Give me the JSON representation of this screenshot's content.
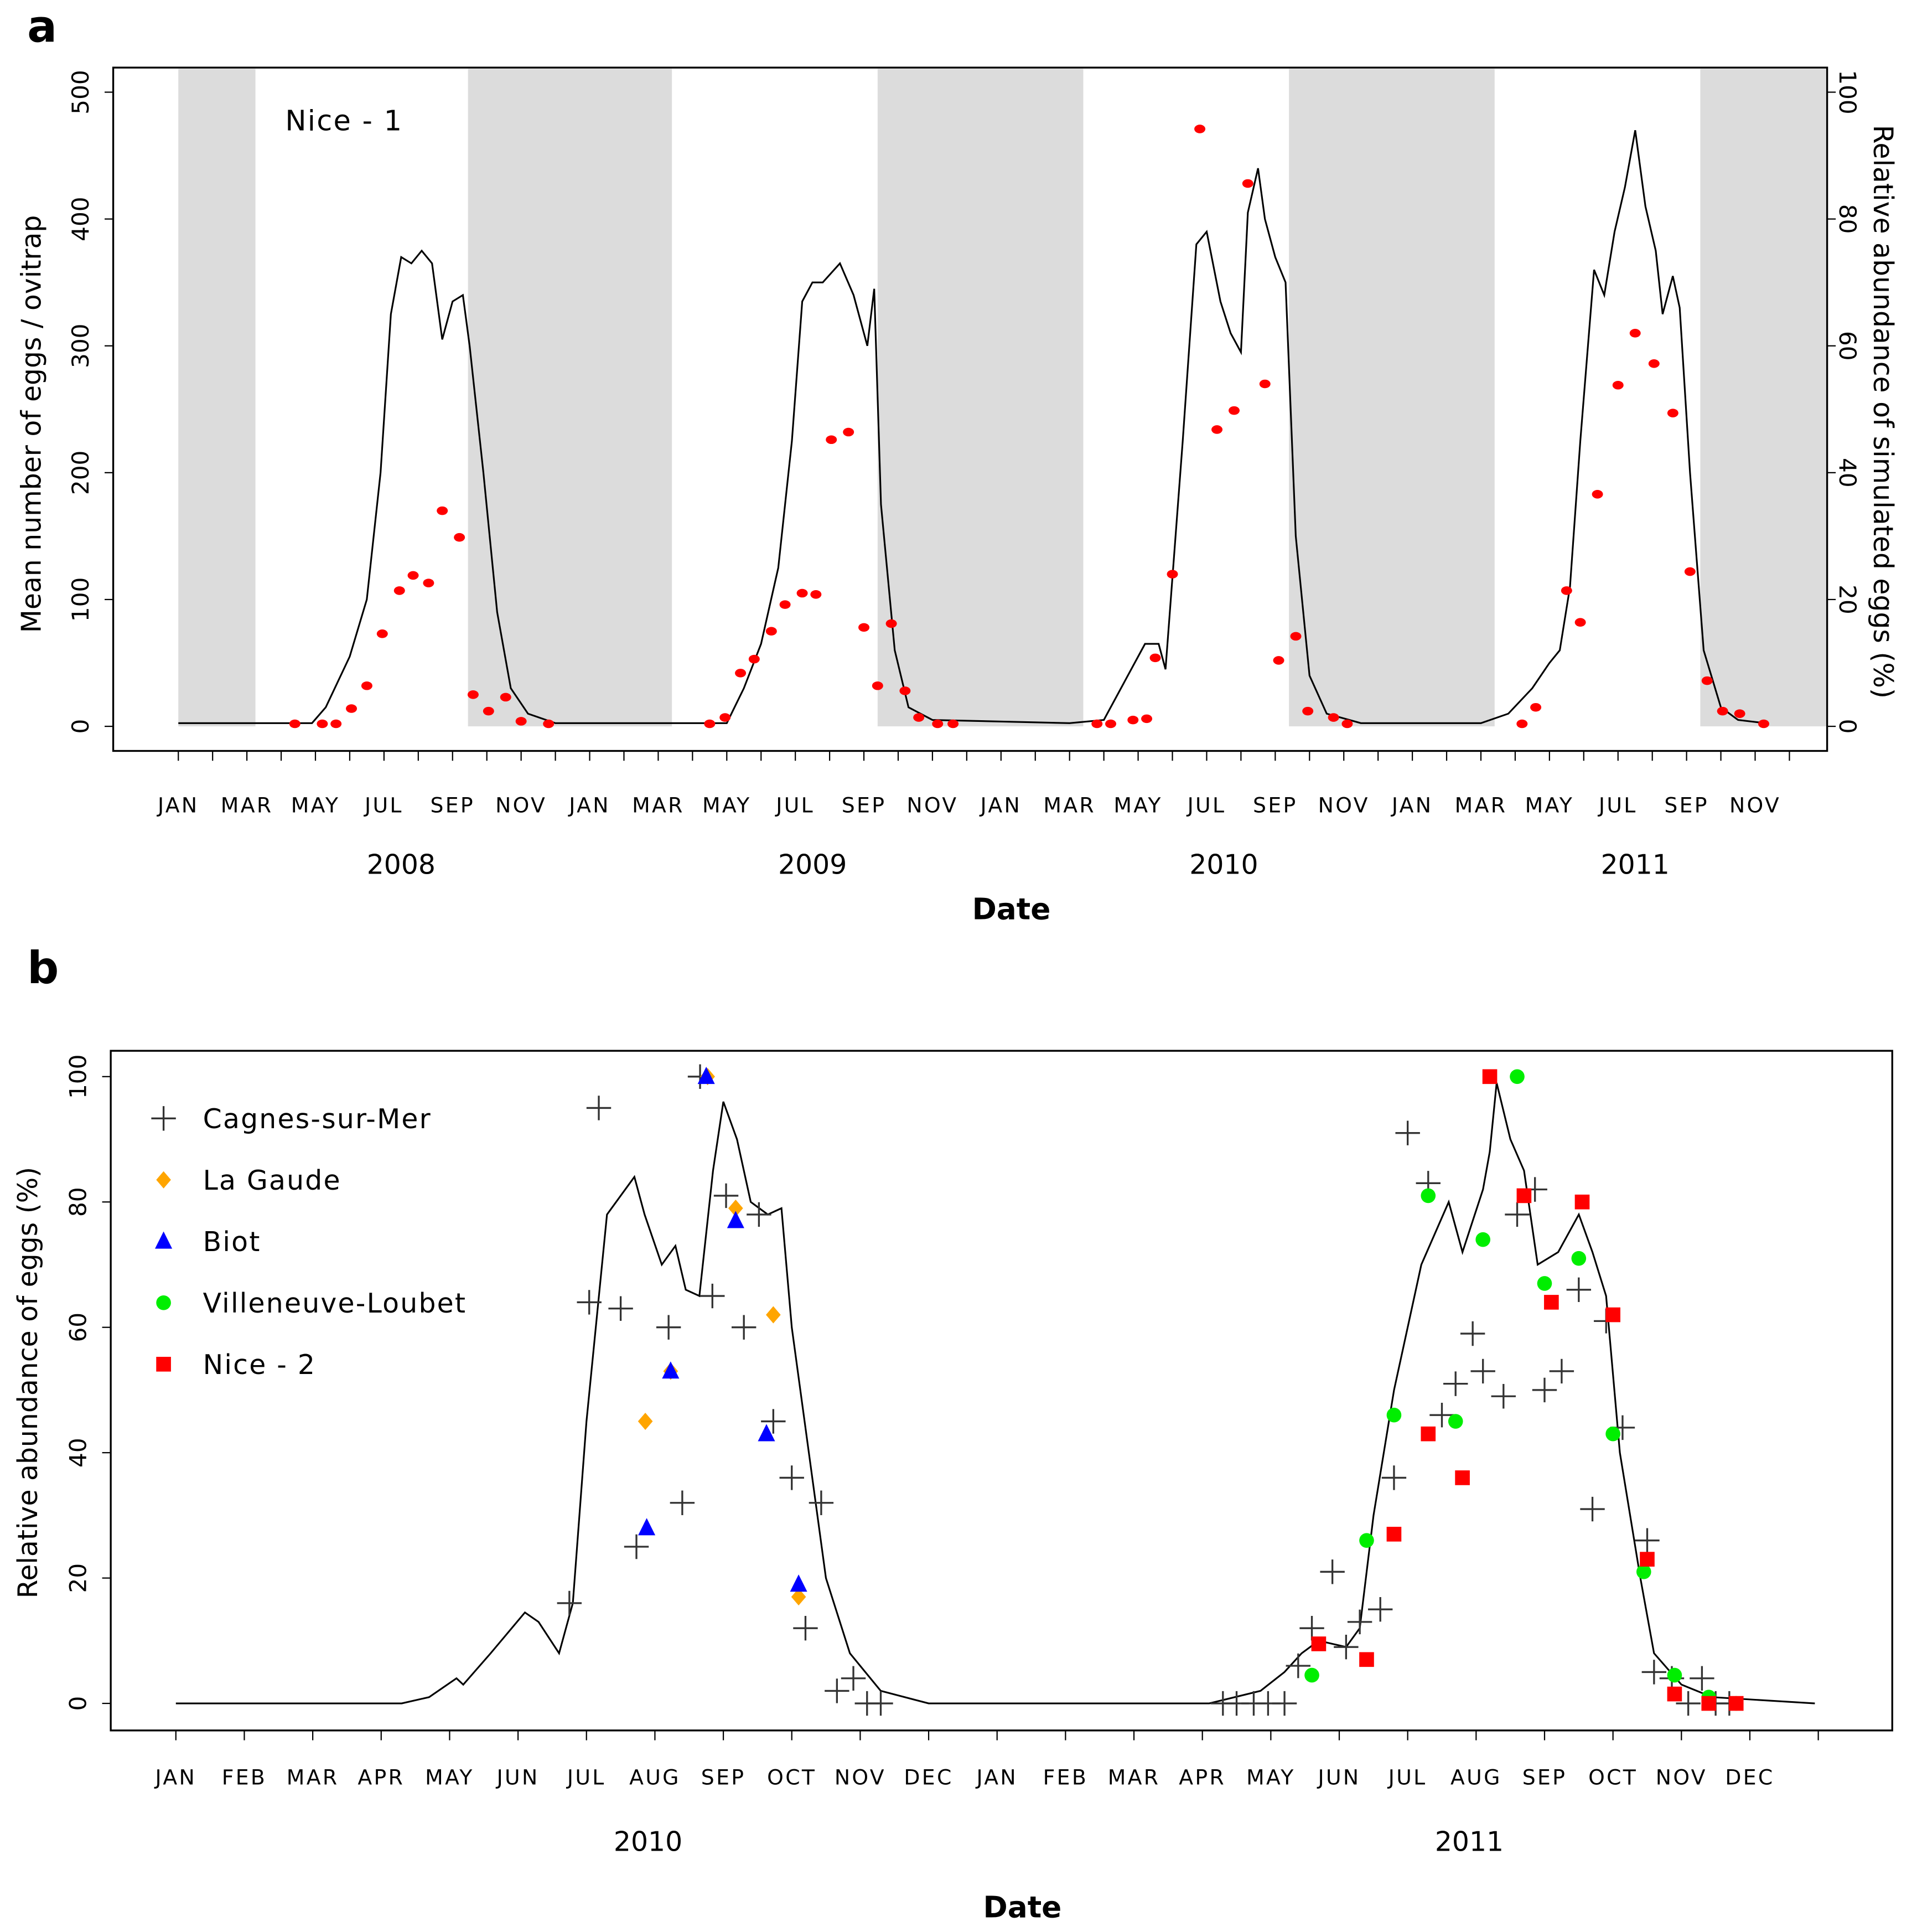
{
  "panel_labels": [
    "a",
    "b"
  ],
  "chart_data": [
    {
      "type": "line+scatter",
      "panel": "a",
      "site_label": "Nice - 1",
      "xlabel": "Date",
      "ylabel": "Mean number of eggs / ovitrap",
      "ylabel_right": "Relative abundance of simulated eggs (%)",
      "ylim": [
        0,
        500
      ],
      "ylim_right": [
        0,
        100
      ],
      "yticks": [
        0,
        100,
        200,
        300,
        400,
        500
      ],
      "yticks_right": [
        0,
        20,
        40,
        60,
        80,
        100
      ],
      "x_unit": "months since Jan 2008",
      "month_labels": [
        "JAN",
        "MAR",
        "MAY",
        "JUL",
        "SEP",
        "NOV",
        "JAN",
        "MAR",
        "MAY",
        "JUL",
        "SEP",
        "NOV",
        "JAN",
        "MAR",
        "MAY",
        "JUL",
        "SEP",
        "NOV",
        "JAN",
        "MAR",
        "MAY",
        "JUL",
        "SEP",
        "NOV"
      ],
      "years": [
        "2008",
        "2009",
        "2010",
        "2011"
      ],
      "shaded_periods_months": [
        [
          0,
          2.25
        ],
        [
          8.45,
          14.4
        ],
        [
          20.4,
          26.4
        ],
        [
          32.4,
          38.4
        ],
        [
          44.4,
          48.3
        ]
      ],
      "observed_eggs": [
        [
          3.4,
          2
        ],
        [
          4.2,
          2
        ],
        [
          4.6,
          2
        ],
        [
          5.05,
          14
        ],
        [
          5.5,
          32
        ],
        [
          5.95,
          73
        ],
        [
          6.45,
          107
        ],
        [
          6.85,
          119
        ],
        [
          7.3,
          113
        ],
        [
          7.7,
          170
        ],
        [
          8.2,
          149
        ],
        [
          8.6,
          25
        ],
        [
          9.05,
          12
        ],
        [
          9.55,
          23
        ],
        [
          10.0,
          4
        ],
        [
          10.8,
          2
        ],
        [
          15.5,
          2
        ],
        [
          15.95,
          7
        ],
        [
          16.4,
          42
        ],
        [
          16.8,
          53
        ],
        [
          17.3,
          75
        ],
        [
          17.7,
          96
        ],
        [
          18.2,
          105
        ],
        [
          18.6,
          104
        ],
        [
          19.05,
          226
        ],
        [
          19.55,
          232
        ],
        [
          20.0,
          78
        ],
        [
          20.4,
          32
        ],
        [
          20.8,
          81
        ],
        [
          21.2,
          28
        ],
        [
          21.6,
          7
        ],
        [
          22.15,
          2
        ],
        [
          22.6,
          2
        ],
        [
          26.8,
          2
        ],
        [
          27.2,
          2
        ],
        [
          27.85,
          5
        ],
        [
          28.25,
          6
        ],
        [
          28.5,
          54
        ],
        [
          29.0,
          120
        ],
        [
          29.8,
          471
        ],
        [
          30.3,
          234
        ],
        [
          30.8,
          249
        ],
        [
          31.2,
          428
        ],
        [
          31.7,
          270
        ],
        [
          32.1,
          52
        ],
        [
          32.6,
          71
        ],
        [
          32.95,
          12
        ],
        [
          33.7,
          7
        ],
        [
          34.1,
          2
        ],
        [
          39.2,
          2
        ],
        [
          39.6,
          15
        ],
        [
          40.5,
          107
        ],
        [
          40.9,
          82
        ],
        [
          41.4,
          183
        ],
        [
          42.0,
          269
        ],
        [
          42.5,
          310
        ],
        [
          43.05,
          286
        ],
        [
          43.6,
          247
        ],
        [
          44.1,
          122
        ],
        [
          44.6,
          36
        ],
        [
          45.05,
          12
        ],
        [
          45.55,
          10
        ],
        [
          46.25,
          2
        ]
      ],
      "simulated_pct": [
        [
          0,
          0.5
        ],
        [
          3.9,
          0.5
        ],
        [
          4.3,
          3
        ],
        [
          5,
          11
        ],
        [
          5.5,
          20
        ],
        [
          5.9,
          40
        ],
        [
          6.2,
          65
        ],
        [
          6.5,
          74
        ],
        [
          6.8,
          73
        ],
        [
          7.1,
          75
        ],
        [
          7.4,
          73
        ],
        [
          7.7,
          61
        ],
        [
          8.0,
          67
        ],
        [
          8.3,
          68
        ],
        [
          8.5,
          60
        ],
        [
          8.9,
          40
        ],
        [
          9.3,
          18
        ],
        [
          9.7,
          6
        ],
        [
          10.2,
          2
        ],
        [
          11,
          0.5
        ],
        [
          16,
          0.5
        ],
        [
          16.5,
          6
        ],
        [
          17,
          13
        ],
        [
          17.5,
          25
        ],
        [
          17.9,
          45
        ],
        [
          18.2,
          67
        ],
        [
          18.5,
          70
        ],
        [
          18.8,
          70
        ],
        [
          19.3,
          73
        ],
        [
          19.7,
          68
        ],
        [
          20.1,
          60
        ],
        [
          20.3,
          69
        ],
        [
          20.5,
          35
        ],
        [
          20.9,
          12
        ],
        [
          21.3,
          3
        ],
        [
          22,
          1
        ],
        [
          26,
          0.5
        ],
        [
          27,
          1
        ],
        [
          27.6,
          7
        ],
        [
          28.2,
          13
        ],
        [
          28.6,
          13
        ],
        [
          28.8,
          9
        ],
        [
          29.3,
          45
        ],
        [
          29.7,
          76
        ],
        [
          30.0,
          78
        ],
        [
          30.4,
          67
        ],
        [
          30.7,
          62
        ],
        [
          31.0,
          59
        ],
        [
          31.2,
          81
        ],
        [
          31.5,
          88
        ],
        [
          31.7,
          80
        ],
        [
          32.0,
          74
        ],
        [
          32.3,
          70
        ],
        [
          32.6,
          30
        ],
        [
          33.0,
          8
        ],
        [
          33.5,
          2
        ],
        [
          34.5,
          0.5
        ],
        [
          38,
          0.5
        ],
        [
          38.8,
          2
        ],
        [
          39.5,
          6
        ],
        [
          40,
          10
        ],
        [
          40.3,
          12
        ],
        [
          40.6,
          22
        ],
        [
          40.9,
          45
        ],
        [
          41.3,
          72
        ],
        [
          41.6,
          68
        ],
        [
          41.9,
          78
        ],
        [
          42.2,
          85
        ],
        [
          42.5,
          94
        ],
        [
          42.8,
          82
        ],
        [
          43.1,
          75
        ],
        [
          43.3,
          65
        ],
        [
          43.6,
          71
        ],
        [
          43.8,
          66
        ],
        [
          44.1,
          40
        ],
        [
          44.5,
          12
        ],
        [
          45,
          3
        ],
        [
          45.5,
          1
        ],
        [
          46.3,
          0.5
        ]
      ],
      "colors": {
        "observed": "#ff0000",
        "simulated": "#000000",
        "shade": "#dcdcdc"
      }
    },
    {
      "type": "line+scatter",
      "panel": "b",
      "xlabel": "Date",
      "ylabel": "Relative abundance of eggs (%)",
      "ylim": [
        0,
        100
      ],
      "yticks": [
        0,
        20,
        40,
        60,
        80,
        100
      ],
      "x_unit": "months since Jan 2010",
      "month_labels": [
        "JAN",
        "FEB",
        "MAR",
        "APR",
        "MAY",
        "JUN",
        "JUL",
        "AUG",
        "SEP",
        "OCT",
        "NOV",
        "DEC",
        "JAN",
        "FEB",
        "MAR",
        "APR",
        "MAY",
        "JUN",
        "JUL",
        "AUG",
        "SEP",
        "OCT",
        "NOV",
        "DEC"
      ],
      "years": [
        "2010",
        "2011"
      ],
      "legend_position": "top-left",
      "series": [
        {
          "name": "Cagnes-sur-Mer",
          "marker": "plus",
          "color": "#333333",
          "points": [
            [
              5.75,
              16
            ],
            [
              6.04,
              64
            ],
            [
              6.18,
              95
            ],
            [
              6.5,
              63
            ],
            [
              6.73,
              25
            ],
            [
              7.2,
              60
            ],
            [
              7.4,
              32
            ],
            [
              7.66,
              100
            ],
            [
              7.84,
              65
            ],
            [
              8.04,
              81
            ],
            [
              8.3,
              60
            ],
            [
              8.52,
              78
            ],
            [
              8.73,
              45
            ],
            [
              9.0,
              36
            ],
            [
              9.2,
              12
            ],
            [
              9.43,
              32
            ],
            [
              9.66,
              2
            ],
            [
              9.9,
              4
            ],
            [
              10.1,
              0
            ],
            [
              10.3,
              0
            ],
            [
              15.3,
              0
            ],
            [
              15.5,
              0
            ],
            [
              15.75,
              0
            ],
            [
              15.96,
              0
            ],
            [
              16.2,
              0
            ],
            [
              16.4,
              6
            ],
            [
              16.6,
              12
            ],
            [
              16.9,
              21
            ],
            [
              17.1,
              9
            ],
            [
              17.3,
              13
            ],
            [
              17.6,
              15
            ],
            [
              17.8,
              36
            ],
            [
              18.0,
              91
            ],
            [
              18.3,
              83
            ],
            [
              18.5,
              46
            ],
            [
              18.7,
              51
            ],
            [
              18.95,
              59
            ],
            [
              19.1,
              53
            ],
            [
              19.4,
              49
            ],
            [
              19.6,
              78
            ],
            [
              19.86,
              82
            ],
            [
              20.0,
              50
            ],
            [
              20.25,
              53
            ],
            [
              20.5,
              66
            ],
            [
              20.7,
              31
            ],
            [
              20.9,
              61
            ],
            [
              21.14,
              44
            ],
            [
              21.5,
              26
            ],
            [
              21.6,
              5
            ],
            [
              21.86,
              4
            ],
            [
              22.1,
              0
            ],
            [
              22.3,
              4
            ],
            [
              22.5,
              0
            ],
            [
              22.7,
              0
            ]
          ]
        },
        {
          "name": "La Gaude",
          "marker": "diamond",
          "color": "#ffa500",
          "points": [
            [
              6.86,
              45
            ],
            [
              7.23,
              53
            ],
            [
              7.77,
              100
            ],
            [
              8.18,
              79
            ],
            [
              8.73,
              62
            ],
            [
              9.1,
              17
            ]
          ]
        },
        {
          "name": "Biot",
          "marker": "triangle",
          "color": "#0000ff",
          "points": [
            [
              6.88,
              28
            ],
            [
              7.23,
              53
            ],
            [
              7.75,
              100
            ],
            [
              8.18,
              77
            ],
            [
              8.63,
              43
            ],
            [
              9.1,
              19
            ]
          ]
        },
        {
          "name": "Villeneuve-Loubet",
          "marker": "circle",
          "color": "#00ee00",
          "points": [
            [
              16.6,
              4.5
            ],
            [
              17.4,
              26
            ],
            [
              17.8,
              46
            ],
            [
              18.3,
              81
            ],
            [
              18.7,
              45
            ],
            [
              19.1,
              74
            ],
            [
              19.6,
              100
            ],
            [
              20.0,
              67
            ],
            [
              20.5,
              71
            ],
            [
              21.0,
              43
            ],
            [
              21.45,
              21
            ],
            [
              21.9,
              4.5
            ],
            [
              22.4,
              1
            ],
            [
              22.8,
              0
            ]
          ]
        },
        {
          "name": "Nice - 2",
          "marker": "square",
          "color": "#ff0000",
          "points": [
            [
              16.7,
              9.5
            ],
            [
              17.4,
              7
            ],
            [
              17.8,
              27
            ],
            [
              18.3,
              43
            ],
            [
              18.8,
              36
            ],
            [
              19.2,
              100
            ],
            [
              19.7,
              81
            ],
            [
              20.1,
              64
            ],
            [
              20.55,
              80
            ],
            [
              21.0,
              62
            ],
            [
              21.5,
              23
            ],
            [
              21.9,
              1.5
            ],
            [
              22.4,
              0
            ],
            [
              22.8,
              0
            ]
          ]
        }
      ],
      "simulated_pct": [
        [
          0,
          0
        ],
        [
          3.3,
          0
        ],
        [
          3.7,
          1
        ],
        [
          4.1,
          4
        ],
        [
          4.2,
          3
        ],
        [
          4.6,
          8
        ],
        [
          5.1,
          14.5
        ],
        [
          5.3,
          13
        ],
        [
          5.6,
          8
        ],
        [
          5.8,
          16
        ],
        [
          6.0,
          45
        ],
        [
          6.3,
          78
        ],
        [
          6.7,
          84
        ],
        [
          6.85,
          78
        ],
        [
          7.1,
          70
        ],
        [
          7.3,
          73
        ],
        [
          7.45,
          66
        ],
        [
          7.65,
          65
        ],
        [
          7.85,
          85
        ],
        [
          8.0,
          96
        ],
        [
          8.2,
          90
        ],
        [
          8.4,
          80
        ],
        [
          8.65,
          78
        ],
        [
          8.85,
          79
        ],
        [
          9.0,
          60
        ],
        [
          9.25,
          40
        ],
        [
          9.5,
          20
        ],
        [
          9.85,
          8
        ],
        [
          10.3,
          2
        ],
        [
          11,
          0
        ],
        [
          15.1,
          0
        ],
        [
          15.85,
          2
        ],
        [
          16.2,
          5
        ],
        [
          16.45,
          8
        ],
        [
          16.7,
          10
        ],
        [
          17.1,
          9
        ],
        [
          17.3,
          12
        ],
        [
          17.5,
          30
        ],
        [
          17.8,
          50
        ],
        [
          18.2,
          70
        ],
        [
          18.6,
          80
        ],
        [
          18.8,
          72
        ],
        [
          19.1,
          82
        ],
        [
          19.2,
          88
        ],
        [
          19.3,
          99
        ],
        [
          19.5,
          90
        ],
        [
          19.7,
          85
        ],
        [
          19.9,
          70
        ],
        [
          20.2,
          72
        ],
        [
          20.5,
          78
        ],
        [
          20.7,
          72
        ],
        [
          20.9,
          65
        ],
        [
          21.1,
          40
        ],
        [
          21.4,
          20
        ],
        [
          21.6,
          8
        ],
        [
          22.0,
          3
        ],
        [
          22.45,
          1
        ],
        [
          23.95,
          0
        ]
      ],
      "colors": {
        "simulated": "#000000"
      }
    }
  ]
}
